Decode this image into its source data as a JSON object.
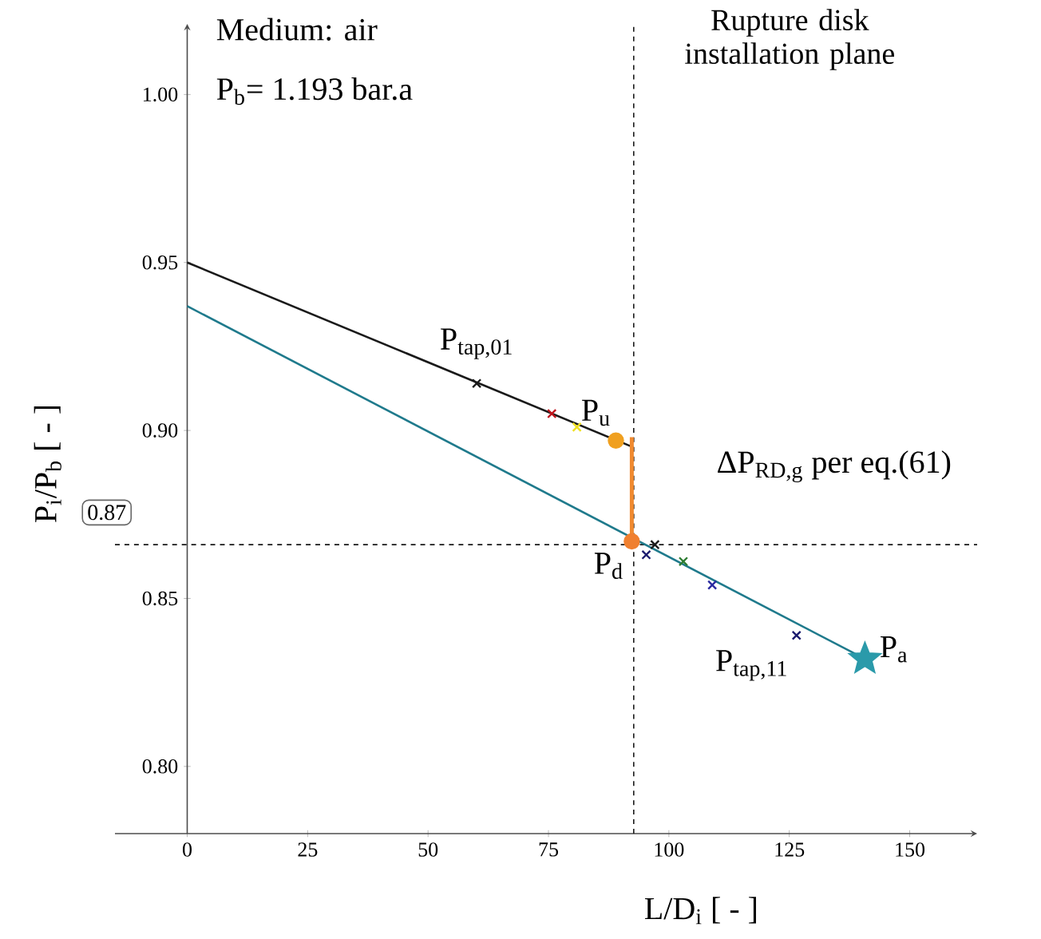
{
  "chart_data": {
    "type": "line",
    "xlabel": "L/D$_{i}$ [ - ]",
    "ylabel": "P$_{i}$/P$_{b}$ [ - ]",
    "xlim": [
      -15,
      164
    ],
    "ylim": [
      0.78,
      1.021
    ],
    "xticks": [
      0,
      25,
      50,
      75,
      100,
      125,
      150
    ],
    "yticks": [
      {
        "value": 0.8,
        "label": "0.80"
      },
      {
        "value": 0.85,
        "label": "0.85"
      },
      {
        "value": 0.9,
        "label": "0.90"
      },
      {
        "value": 0.95,
        "label": "0.95"
      },
      {
        "value": 1.0,
        "label": "1.00"
      }
    ],
    "series": [
      {
        "color": "#1a1a1a",
        "x": [
          0,
          92.6
        ],
        "values": [
          0.95,
          0.895
        ]
      },
      {
        "color": "#1f7a8c",
        "x": [
          0,
          140.7
        ],
        "values": [
          0.937,
          0.832
        ]
      },
      {
        "color": "#f08a30",
        "x": [
          92.3,
          92.3
        ],
        "values": [
          0.867,
          0.898
        ]
      },
      {
        "type": "scatter",
        "marker": "cross",
        "x": [
          60.1,
          75.7,
          80.9,
          95.3,
          97.1,
          103,
          109,
          126.5
        ],
        "values": [
          0.914,
          0.905,
          0.901,
          0.863,
          0.866,
          0.861,
          0.854,
          0.839
        ],
        "colors": [
          "#1a1a1a",
          "#c0141c",
          "#f0e020",
          "#1a1a6e",
          "#1a1a1a",
          "#2e7d32",
          "#2a2aa0",
          "#1a1a6e"
        ]
      },
      {
        "type": "scatter",
        "marker": "circle",
        "x": [
          89,
          92.3
        ],
        "values": [
          0.897,
          0.867
        ],
        "colors": [
          "#f0a020",
          "#f08030"
        ]
      },
      {
        "type": "scatter",
        "marker": "star",
        "x": [
          140.7
        ],
        "values": [
          0.832
        ],
        "colors": [
          "#2a9aaa"
        ]
      }
    ],
    "ref_lines": [
      {
        "axis": "x",
        "value": 92.7,
        "label": "Rupture disk installation plane",
        "color": "#1a1a1a",
        "line_style": "dashed"
      },
      {
        "axis": "y",
        "value": 0.866,
        "label": "0.87",
        "color": "#1a1a1a",
        "line_style": "dashed"
      }
    ],
    "annotations": [
      "Medium: air",
      "P$_{b}$= 1.193 bar.a",
      "ΔP$_{RD,g}$ per eq.(61)",
      {
        "text": "P$_{tap,01}$",
        "x": 60.1,
        "y": 0.914
      },
      {
        "text": "P$_{u}$",
        "x": 89,
        "y": 0.897
      },
      {
        "text": "P$_{d}$",
        "x": 92.3,
        "y": 0.867
      },
      {
        "text": "P$_{a}$",
        "x": 140.7,
        "y": 0.832
      },
      {
        "text": "P$_{tap,11}$",
        "x": 126.5,
        "y": 0.839
      }
    ]
  }
}
